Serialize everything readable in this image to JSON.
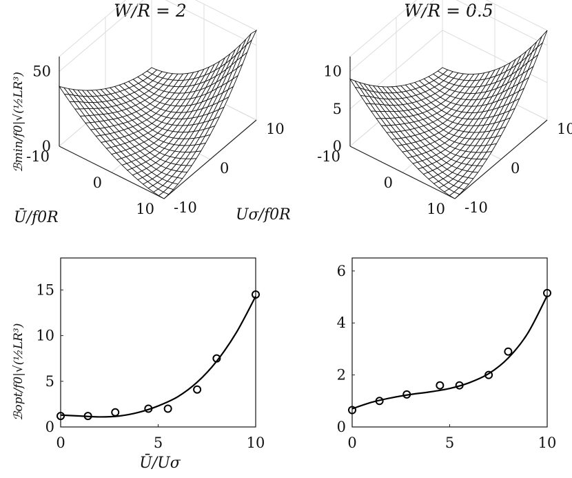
{
  "chart_data": [
    {
      "id": "surf-left",
      "type": "surface3d",
      "title": "W/R = 2",
      "zlabel": "ℬmin/f0|√(½LR³)",
      "xlabel": "Ū/f0R",
      "ylabel": "Uσ/f0R",
      "xlim": [
        -10,
        10
      ],
      "ylim": [
        -10,
        10
      ],
      "zlim": [
        0,
        60
      ],
      "xticks": [
        "-10",
        "0",
        "10"
      ],
      "yticks": [
        "-10",
        "0",
        "10"
      ],
      "zticks": [
        "0",
        "50"
      ],
      "grid_n": 20,
      "description_values": {
        "corner_ub_min_us_min": 40,
        "corner_ub_max_us_max": 62,
        "valley_min": 0
      }
    },
    {
      "id": "surf-right",
      "type": "surface3d",
      "title": "W/R = 0.5",
      "xlim": [
        -10,
        10
      ],
      "ylim": [
        -10,
        10
      ],
      "zlim": [
        0,
        12
      ],
      "xticks": [
        "-10",
        "0",
        "10"
      ],
      "yticks": [
        "-10",
        "0",
        "10"
      ],
      "zticks": [
        "0",
        "5",
        "10"
      ],
      "grid_n": 20,
      "description_values": {
        "corner_ub_min_us_min": 9,
        "corner_ub_max_us_max": 12,
        "valley_min": 0
      }
    },
    {
      "id": "line-left",
      "type": "scatter+line",
      "xlabel": "Ū/Uσ",
      "ylabel": "ℬopt/f0|√(½LR³)",
      "xlim": [
        0,
        10
      ],
      "ylim": [
        0,
        18.5
      ],
      "xticks": [
        0,
        5,
        10
      ],
      "yticks": [
        0,
        5,
        10,
        15
      ],
      "points": {
        "x": [
          0,
          1.4,
          2.8,
          4.5,
          5.5,
          7,
          8,
          10
        ],
        "y": [
          1.2,
          1.2,
          1.6,
          2.0,
          2.0,
          4.1,
          7.5,
          14.5
        ]
      },
      "fit": {
        "x": [
          0,
          1,
          2,
          3,
          4,
          5,
          6,
          7,
          8,
          9,
          10
        ],
        "y": [
          1.3,
          1.2,
          1.1,
          1.2,
          1.6,
          2.3,
          3.3,
          4.9,
          7.2,
          10.3,
          14.3
        ]
      }
    },
    {
      "id": "line-right",
      "type": "scatter+line",
      "xlabel": "",
      "ylabel": "",
      "xlim": [
        0,
        10
      ],
      "ylim": [
        0,
        6.5
      ],
      "xticks": [
        0,
        5,
        10
      ],
      "yticks": [
        0,
        2,
        4,
        6
      ],
      "points": {
        "x": [
          0,
          1.4,
          2.8,
          4.5,
          5.5,
          7,
          8,
          10
        ],
        "y": [
          0.65,
          1.0,
          1.25,
          1.6,
          1.6,
          2.0,
          2.9,
          5.15
        ]
      },
      "fit": {
        "x": [
          0,
          1,
          2,
          3,
          4,
          5,
          6,
          7,
          8,
          9,
          10
        ],
        "y": [
          0.7,
          0.95,
          1.12,
          1.25,
          1.35,
          1.48,
          1.7,
          2.05,
          2.65,
          3.6,
          5.05
        ]
      }
    }
  ]
}
